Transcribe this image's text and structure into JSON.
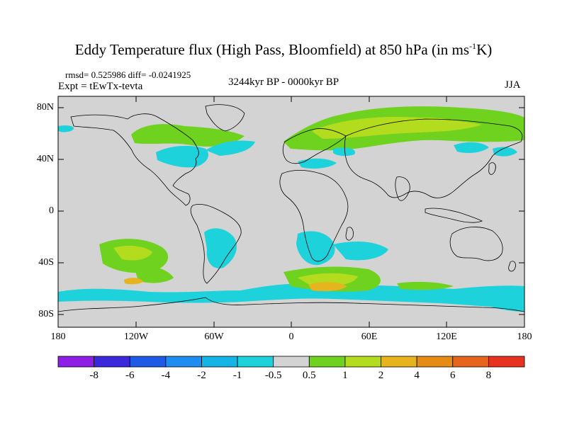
{
  "title": {
    "main": "Eddy Temperature flux (High Pass, Bloomfield) at 850 hPa (in ms",
    "sup": "-1",
    "unit_end": "K)"
  },
  "stats": "rmsd= 0.525986 diff= -0.0241925",
  "experiment": "Expt = tEwTx-tevta",
  "period": "3244kyr BP - 0000kyr BP",
  "season": "JJA",
  "lat_labels": [
    "80N",
    "40N",
    "0",
    "40S",
    "80S"
  ],
  "lon_labels": [
    "180",
    "120W",
    "60W",
    "0",
    "60E",
    "120E",
    "180"
  ],
  "colorbar": {
    "labels": [
      "-8",
      "-6",
      "-4",
      "-2",
      "-1",
      "-0.5",
      "0.5",
      "1",
      "2",
      "4",
      "6",
      "8"
    ],
    "colors": [
      "#8c1ee6",
      "#3c28dc",
      "#1e5ae6",
      "#1e8cf0",
      "#14b4e6",
      "#1ed2dc",
      "#d3d3d3",
      "#6ed21e",
      "#b4dc1e",
      "#e6b41e",
      "#e68c14",
      "#e6641e",
      "#e6321e"
    ]
  },
  "colors": {
    "land_sea_background": "#d3d3d3",
    "coastline": "#000000"
  }
}
